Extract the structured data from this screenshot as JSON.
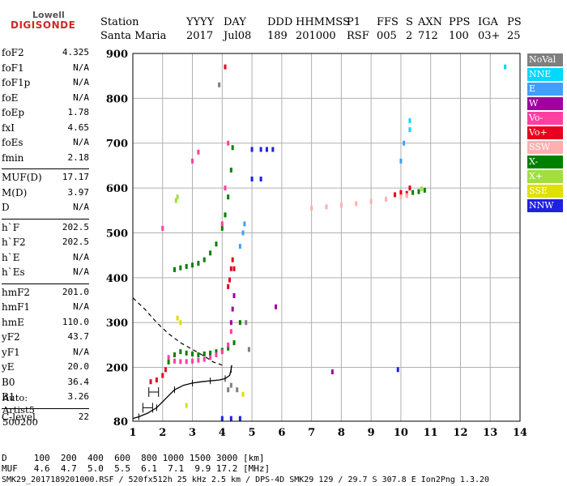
{
  "logo": {
    "top": "Lowell",
    "bottom": "DIGISONDE"
  },
  "header": {
    "labels": [
      "Station",
      "YYYY",
      "DAY",
      "DDD",
      "HHMMSS",
      "P1",
      "FFS",
      "S",
      "AXN",
      "PPS",
      "IGA",
      "PS"
    ],
    "values": [
      "Santa Maria",
      "2017",
      "Jul08",
      "189",
      "201000",
      "RSF",
      "005",
      "2",
      "712",
      "100",
      "03+",
      "25"
    ]
  },
  "params": [
    {
      "name": "foF2",
      "value": "4.325"
    },
    {
      "name": "foF1",
      "value": "N/A"
    },
    {
      "name": "foF1p",
      "value": "N/A"
    },
    {
      "name": "foE",
      "value": "N/A"
    },
    {
      "name": "foEp",
      "value": "1.78"
    },
    {
      "name": "fxI",
      "value": "4.65"
    },
    {
      "name": "foEs",
      "value": "N/A"
    },
    {
      "name": "fmin",
      "value": "2.18"
    },
    {
      "name": "MUF(D)",
      "value": "17.17"
    },
    {
      "name": "M(D)",
      "value": "3.97"
    },
    {
      "name": "D",
      "value": "N/A"
    },
    {
      "name": "h`F",
      "value": "202.5"
    },
    {
      "name": "h`F2",
      "value": "202.5"
    },
    {
      "name": "h`E",
      "value": "N/A"
    },
    {
      "name": "h`Es",
      "value": "N/A"
    },
    {
      "name": "hmF2",
      "value": "201.0"
    },
    {
      "name": "hmF1",
      "value": "N/A"
    },
    {
      "name": "hmE",
      "value": "110.0"
    },
    {
      "name": "yF2",
      "value": "43.7"
    },
    {
      "name": "yF1",
      "value": "N/A"
    },
    {
      "name": "yE",
      "value": "20.0"
    },
    {
      "name": "B0",
      "value": "36.4"
    },
    {
      "name": "B1",
      "value": "3.26"
    },
    {
      "name": "C-level",
      "value": "22"
    }
  ],
  "auto": {
    "line1": "Auto:",
    "line2": "Artist5",
    "line3": "500200"
  },
  "legend": [
    {
      "label": "NoVal",
      "color": "#7f7f7f"
    },
    {
      "label": "NNE",
      "color": "#00d8ff"
    },
    {
      "label": "E",
      "color": "#3f9fff"
    },
    {
      "label": "W",
      "color": "#a000a0"
    },
    {
      "label": "Vo-",
      "color": "#ff3fa0"
    },
    {
      "label": "Vo+",
      "color": "#e8001e"
    },
    {
      "label": "SSW",
      "color": "#ffafaf"
    },
    {
      "label": "X-",
      "color": "#008000"
    },
    {
      "label": "X+",
      "color": "#9fdf3f"
    },
    {
      "label": "SSE",
      "color": "#dfdf00"
    },
    {
      "label": "NNW",
      "color": "#2020e0"
    }
  ],
  "footer": {
    "d_row": "D     100  200  400  600  800 1000 1500 3000 [km]",
    "muf_row": "MUF   4.6  4.7  5.0  5.5  6.1  7.1  9.9 17.2 [MHz]",
    "file_row": "SMK29_2017189201000.RSF / 520fx512h 25 kHz 2.5 km / DPS-4D SMK29 129 / 29.7 S 307.8 E Ion2Png 1.3.20"
  },
  "chart_data": {
    "type": "scatter",
    "title": "",
    "xlabel": "",
    "ylabel": "",
    "xlim": [
      1,
      14
    ],
    "ylim": [
      80,
      900
    ],
    "x_ticks": [
      "1",
      "2",
      "3",
      "4",
      "5",
      "6",
      "7",
      "8",
      "9",
      "10",
      "11",
      "12",
      "13",
      "14"
    ],
    "y_ticks": [
      "80",
      "200",
      "300",
      "400",
      "500",
      "600",
      "700",
      "800",
      "900"
    ],
    "grid": true,
    "series": [
      {
        "name": "X-",
        "color": "#008000",
        "x": [
          2.2,
          2.4,
          2.6,
          2.8,
          3.0,
          3.2,
          3.4,
          3.6,
          3.8,
          4.0,
          4.2,
          4.4,
          4.6,
          2.4,
          2.6,
          2.8,
          3.0,
          3.2,
          3.4,
          3.6,
          3.8,
          4.0,
          4.1,
          4.2,
          4.3,
          4.35,
          10.4,
          10.6,
          10.8
        ],
        "y": [
          212,
          228,
          235,
          232,
          230,
          228,
          230,
          232,
          235,
          238,
          243,
          255,
          300,
          418,
          422,
          425,
          428,
          432,
          440,
          455,
          475,
          510,
          540,
          580,
          640,
          690,
          590,
          592,
          595
        ]
      },
      {
        "name": "Vo-",
        "color": "#ff3fa0",
        "x": [
          2.2,
          2.4,
          2.6,
          2.8,
          3.0,
          3.2,
          3.4,
          3.6,
          3.8,
          4.0,
          4.2,
          4.3,
          4.0,
          4.1,
          4.2,
          2.0,
          3.0,
          3.2
        ],
        "y": [
          222,
          214,
          213,
          213,
          214,
          216,
          218,
          222,
          228,
          235,
          250,
          280,
          520,
          600,
          700,
          510,
          660,
          680
        ]
      },
      {
        "name": "Vo+",
        "color": "#e8001e",
        "x": [
          1.6,
          1.8,
          2.0,
          2.1,
          4.2,
          4.25,
          4.3,
          4.35,
          4.4,
          9.8,
          10.0,
          10.2,
          10.3,
          4.1
        ],
        "y": [
          168,
          172,
          182,
          195,
          380,
          395,
          420,
          440,
          420,
          585,
          590,
          588,
          600,
          870
        ]
      },
      {
        "name": "SSW",
        "color": "#ffafaf",
        "x": [
          7.0,
          7.5,
          8.0,
          8.5,
          9.0,
          9.5,
          10.0,
          10.2
        ],
        "y": [
          555,
          558,
          562,
          565,
          570,
          575,
          580,
          583
        ]
      },
      {
        "name": "E",
        "color": "#3f9fff",
        "x": [
          4.6,
          4.7,
          4.75,
          10.0,
          10.1
        ],
        "y": [
          470,
          500,
          520,
          660,
          700
        ]
      },
      {
        "name": "NNE",
        "color": "#00d8ff",
        "x": [
          10.3,
          10.3,
          13.5
        ],
        "y": [
          730,
          750,
          870
        ]
      },
      {
        "name": "W",
        "color": "#a000a0",
        "x": [
          4.3,
          4.35,
          4.4,
          7.7,
          5.8
        ],
        "y": [
          300,
          330,
          360,
          190,
          335
        ]
      },
      {
        "name": "NNW",
        "color": "#2020e0",
        "x": [
          4.0,
          4.3,
          4.6,
          5.0,
          5.3,
          5.5,
          5.7,
          5.0,
          5.3,
          9.9
        ],
        "y": [
          86,
          86,
          86,
          686,
          686,
          686,
          686,
          620,
          620,
          195
        ]
      },
      {
        "name": "X+",
        "color": "#9fdf3f",
        "x": [
          2.45,
          2.5,
          10.7
        ],
        "y": [
          572,
          580,
          598
        ]
      },
      {
        "name": "SSE",
        "color": "#dfdf00",
        "x": [
          2.5,
          2.6,
          4.7,
          2.8
        ],
        "y": [
          310,
          300,
          140,
          115
        ]
      },
      {
        "name": "NoVal",
        "color": "#7f7f7f",
        "x": [
          4.9,
          4.2,
          4.3,
          4.5,
          4.8,
          3.9
        ],
        "y": [
          240,
          150,
          160,
          150,
          300,
          830
        ]
      }
    ],
    "profile_solid": {
      "x": [
        1.0,
        1.2,
        1.5,
        1.8,
        2.1,
        2.4,
        2.7,
        3.0,
        3.3,
        3.6,
        3.9,
        4.1,
        4.25,
        4.3,
        4.32
      ],
      "y": [
        86,
        90,
        98,
        110,
        130,
        150,
        160,
        165,
        168,
        170,
        172,
        175,
        182,
        195,
        205
      ]
    },
    "profile_dashed": {
      "x": [
        1.0,
        1.4,
        1.8,
        2.2,
        2.6,
        3.0,
        3.4,
        3.7,
        4.0
      ],
      "y": [
        355,
        330,
        300,
        275,
        255,
        240,
        225,
        212,
        205
      ]
    },
    "error_bars": {
      "x": [
        1.5,
        1.7
      ],
      "y": [
        110,
        145
      ]
    }
  }
}
